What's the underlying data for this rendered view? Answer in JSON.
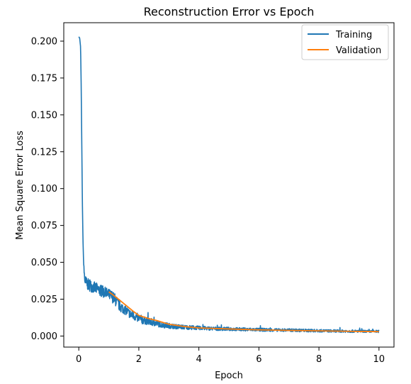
{
  "chart_data": {
    "type": "line",
    "title": "Reconstruction Error vs Epoch",
    "xlabel": "Epoch",
    "ylabel": "Mean Square Error Loss",
    "xlim": [
      -0.5,
      10.5
    ],
    "ylim": [
      -0.0075,
      0.2125
    ],
    "xticks": [
      0,
      2,
      4,
      6,
      8,
      10
    ],
    "xtick_labels": [
      "0",
      "2",
      "4",
      "6",
      "8",
      "10"
    ],
    "yticks": [
      0.0,
      0.025,
      0.05,
      0.075,
      0.1,
      0.125,
      0.15,
      0.175,
      0.2
    ],
    "ytick_labels": [
      "0.000",
      "0.025",
      "0.050",
      "0.075",
      "0.100",
      "0.125",
      "0.150",
      "0.175",
      "0.200"
    ],
    "grid": false,
    "legend_position": "top-right",
    "series": [
      {
        "name": "Training",
        "color": "#1f77b4",
        "x": [
          0.0,
          0.03,
          0.06,
          0.08,
          0.1,
          0.12,
          0.14,
          0.16,
          0.18,
          0.2,
          0.25,
          0.3,
          0.4,
          0.5,
          0.6,
          0.7,
          0.8,
          0.9,
          1.0,
          1.1,
          1.2,
          1.3,
          1.4,
          1.5,
          1.6,
          1.7,
          1.8,
          1.9,
          2.0,
          2.1,
          2.2,
          2.4,
          2.6,
          2.8,
          3.0,
          3.2,
          3.5,
          4.0,
          4.5,
          5.0,
          5.5,
          6.0,
          6.5,
          7.0,
          7.5,
          8.0,
          8.5,
          9.0,
          9.5,
          10.0
        ],
        "y": [
          0.203,
          0.202,
          0.196,
          0.17,
          0.13,
          0.09,
          0.065,
          0.05,
          0.043,
          0.038,
          0.036,
          0.035,
          0.034,
          0.033,
          0.032,
          0.031,
          0.03,
          0.029,
          0.028,
          0.027,
          0.025,
          0.022,
          0.02,
          0.018,
          0.017,
          0.015,
          0.014,
          0.013,
          0.012,
          0.011,
          0.0105,
          0.0095,
          0.0085,
          0.0075,
          0.007,
          0.0065,
          0.006,
          0.0055,
          0.005,
          0.0048,
          0.0045,
          0.0043,
          0.0041,
          0.004,
          0.0038,
          0.0036,
          0.0034,
          0.0033,
          0.0032,
          0.0031
        ],
        "noise_amp": [
          0.0,
          0.0,
          0.0,
          0.0,
          0.0,
          0.0,
          0.0,
          0.0,
          0.003,
          0.004,
          0.004,
          0.004,
          0.004,
          0.004,
          0.004,
          0.004,
          0.004,
          0.004,
          0.004,
          0.004,
          0.004,
          0.004,
          0.004,
          0.003,
          0.003,
          0.003,
          0.003,
          0.003,
          0.003,
          0.003,
          0.0025,
          0.0025,
          0.002,
          0.002,
          0.0018,
          0.0016,
          0.0015,
          0.0013,
          0.0012,
          0.0012,
          0.0011,
          0.0011,
          0.001,
          0.001,
          0.001,
          0.0009,
          0.0009,
          0.0009,
          0.0008,
          0.0008
        ]
      },
      {
        "name": "Validation",
        "color": "#ff7f0e",
        "x": [
          1.0,
          1.2,
          1.5,
          1.8,
          2.0,
          2.3,
          2.6,
          3.0,
          3.5,
          4.0,
          5.0,
          6.0,
          7.0,
          8.0,
          9.0,
          10.0
        ],
        "y": [
          0.03,
          0.027,
          0.022,
          0.017,
          0.014,
          0.012,
          0.0105,
          0.008,
          0.0065,
          0.0055,
          0.0048,
          0.0042,
          0.0038,
          0.0035,
          0.0032,
          0.003
        ]
      }
    ]
  }
}
